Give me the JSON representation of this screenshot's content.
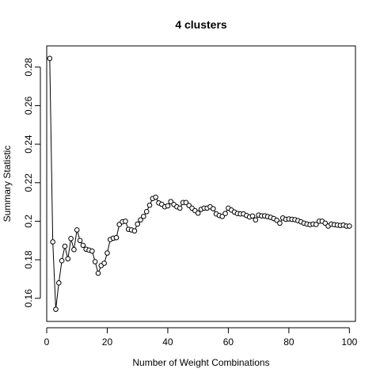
{
  "chart_data": {
    "type": "line",
    "title": "4 clusters",
    "xlabel": "Number of Weight Combinations",
    "ylabel": "Summary Statistic",
    "xlim": [
      0,
      102
    ],
    "ylim": [
      0.148,
      0.291
    ],
    "x_ticks": [
      0,
      20,
      40,
      60,
      80,
      100
    ],
    "y_ticks": [
      0.16,
      0.18,
      0.2,
      0.22,
      0.24,
      0.26,
      0.28
    ],
    "x_tick_labels": [
      "0",
      "20",
      "40",
      "60",
      "80",
      "100"
    ],
    "y_tick_labels": [
      "0.16",
      "0.18",
      "0.2",
      "0.22",
      "0.24",
      "0.26",
      "0.28"
    ],
    "grid": false,
    "markers": "open-circle",
    "line_color": "#000000",
    "series": [
      {
        "x": [
          1,
          2,
          3,
          4,
          5,
          6,
          7,
          8,
          9,
          10,
          11,
          12,
          13,
          14,
          15,
          16,
          17,
          18,
          19,
          20,
          21,
          22,
          23,
          24,
          25,
          26,
          27,
          28,
          29,
          30,
          31,
          32,
          33,
          34,
          35,
          36,
          37,
          38,
          39,
          40,
          41,
          42,
          43,
          44,
          45,
          46,
          47,
          48,
          49,
          50,
          51,
          52,
          53,
          54,
          55,
          56,
          57,
          58,
          59,
          60,
          61,
          62,
          63,
          64,
          65,
          66,
          67,
          68,
          69,
          70,
          71,
          72,
          73,
          74,
          75,
          76,
          77,
          78,
          79,
          80,
          81,
          82,
          83,
          84,
          85,
          86,
          87,
          88,
          89,
          90,
          91,
          92,
          93,
          94,
          95,
          96,
          97,
          98,
          99,
          100
        ],
        "y": [
          0.2845,
          0.1893,
          0.1543,
          0.168,
          0.1795,
          0.187,
          0.1805,
          0.191,
          0.1853,
          0.1955,
          0.19,
          0.1875,
          0.1855,
          0.185,
          0.1845,
          0.179,
          0.173,
          0.177,
          0.1782,
          0.1835,
          0.1905,
          0.1912,
          0.1915,
          0.1983,
          0.1997,
          0.2,
          0.1958,
          0.1955,
          0.195,
          0.1985,
          0.2007,
          0.2025,
          0.205,
          0.2083,
          0.2118,
          0.2125,
          0.2095,
          0.2088,
          0.2075,
          0.208,
          0.2102,
          0.2087,
          0.2075,
          0.2068,
          0.2097,
          0.2097,
          0.2082,
          0.2068,
          0.2055,
          0.2042,
          0.2062,
          0.2068,
          0.2068,
          0.2075,
          0.2065,
          0.2038,
          0.203,
          0.2025,
          0.204,
          0.2068,
          0.2058,
          0.2048,
          0.204,
          0.2038,
          0.2038,
          0.203,
          0.2022,
          0.2027,
          0.2007,
          0.2032,
          0.2028,
          0.2028,
          0.2024,
          0.202,
          0.2014,
          0.2005,
          0.199,
          0.2017,
          0.201,
          0.2012,
          0.201,
          0.2008,
          0.2003,
          0.1997,
          0.199,
          0.1985,
          0.1982,
          0.1985,
          0.1983,
          0.2,
          0.2,
          0.199,
          0.1975,
          0.1985,
          0.1982,
          0.198,
          0.1978,
          0.198,
          0.1975,
          0.1975
        ]
      }
    ]
  }
}
